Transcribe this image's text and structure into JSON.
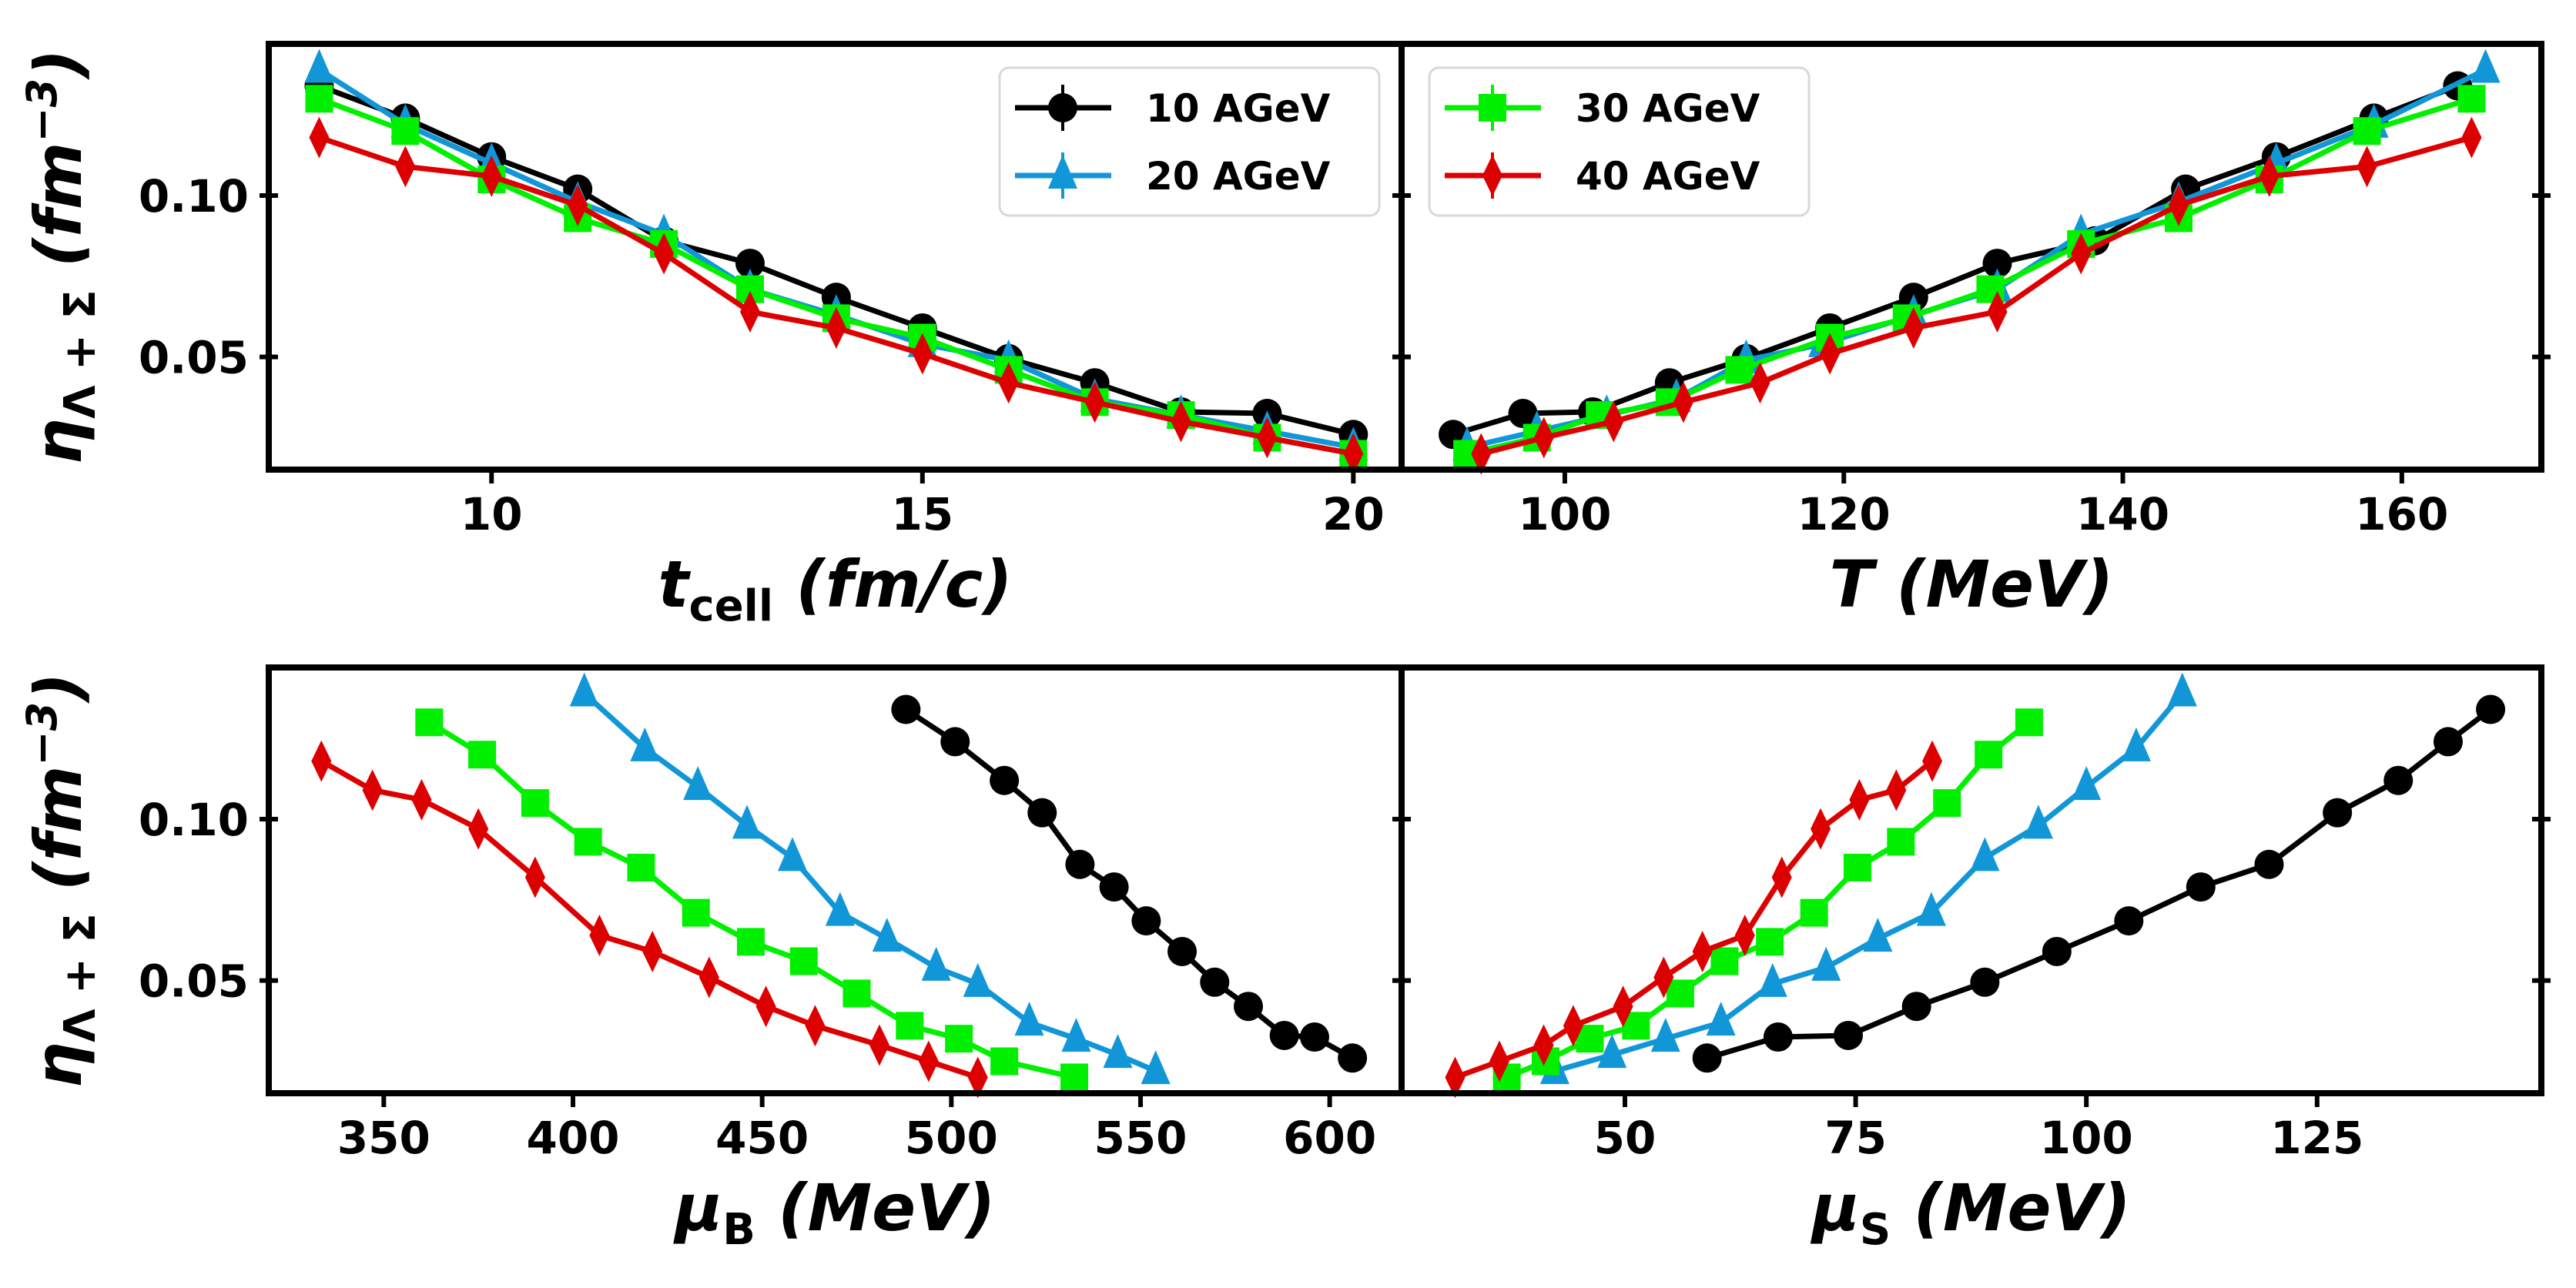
{
  "chart_data": [
    {
      "type": "line",
      "panel": "top-left",
      "xlabel": {
        "symbol": "t",
        "sub": "cell",
        "unit": "(fm/c)"
      },
      "ylabel": {
        "symbol": "η",
        "sub": "Λ + Σ",
        "unit_open": "(fm",
        "sup": "−3",
        "unit_close": ")"
      },
      "xlim": [
        7.415,
        20.56
      ],
      "ylim": [
        0.0151,
        0.147
      ],
      "xticks": [
        10,
        15,
        20
      ],
      "xtick_labels": [
        "10",
        "15",
        "20"
      ],
      "yticks": [
        0.05,
        0.1
      ],
      "ytick_labels": [
        "0.05",
        "0.10"
      ],
      "legend": {
        "placement": "top-right",
        "entries": [
          0,
          1
        ]
      },
      "series": [
        {
          "name": "10 AGeV",
          "color": "#000000",
          "marker": "circle",
          "x": [
            8,
            9,
            10,
            11,
            12,
            13,
            14,
            15,
            16,
            17,
            18,
            19,
            20
          ],
          "y": [
            0.134,
            0.124,
            0.112,
            0.102,
            0.086,
            0.079,
            0.0685,
            0.059,
            0.0495,
            0.042,
            0.033,
            0.0325,
            0.026
          ]
        },
        {
          "name": "20 AGeV",
          "color": "#1196d8",
          "marker": "triangle",
          "x": [
            8,
            9,
            10,
            11,
            12,
            13,
            14,
            15,
            16,
            17,
            18,
            19,
            20
          ],
          "y": [
            0.139,
            0.122,
            0.11,
            0.098,
            0.088,
            0.071,
            0.063,
            0.054,
            0.049,
            0.037,
            0.032,
            0.027,
            0.022
          ]
        },
        {
          "name": "30 AGeV",
          "color": "#00f000",
          "marker": "square",
          "x": [
            8,
            9,
            10,
            11,
            12,
            13,
            14,
            15,
            16,
            17,
            18,
            19,
            20
          ],
          "y": [
            0.13,
            0.12,
            0.105,
            0.093,
            0.085,
            0.071,
            0.062,
            0.056,
            0.046,
            0.036,
            0.032,
            0.025,
            0.02
          ]
        },
        {
          "name": "40 AGeV",
          "color": "#dd0000",
          "marker": "diamond",
          "x": [
            8,
            9,
            10,
            11,
            12,
            13,
            14,
            15,
            16,
            17,
            18,
            19,
            20
          ],
          "y": [
            0.118,
            0.109,
            0.106,
            0.097,
            0.082,
            0.064,
            0.059,
            0.051,
            0.042,
            0.036,
            0.03,
            0.025,
            0.02
          ]
        }
      ]
    },
    {
      "type": "line",
      "panel": "top-right",
      "xlabel": {
        "symbol": "T",
        "sub": "",
        "unit": "(MeV)"
      },
      "ylabel": null,
      "xlim": [
        88.3,
        170
      ],
      "ylim": [
        0.0151,
        0.147
      ],
      "xticks": [
        100,
        120,
        140,
        160
      ],
      "xtick_labels": [
        "100",
        "120",
        "140",
        "160"
      ],
      "yticks": [
        0.05,
        0.1
      ],
      "ytick_labels": [],
      "legend": {
        "placement": "top-left",
        "entries": [
          2,
          3
        ]
      },
      "series": [
        {
          "name": "10 AGeV",
          "color": "#000000",
          "marker": "circle",
          "x": [
            164,
            158,
            151,
            144.5,
            138,
            131,
            125,
            119,
            113,
            107.5,
            102,
            97,
            92
          ],
          "y": [
            0.134,
            0.124,
            0.112,
            0.102,
            0.086,
            0.079,
            0.0685,
            0.059,
            0.0495,
            0.042,
            0.033,
            0.0325,
            0.026
          ]
        },
        {
          "name": "20 AGeV",
          "color": "#1196d8",
          "marker": "triangle",
          "x": [
            166,
            158,
            151,
            144,
            137,
            131,
            125,
            118.5,
            113,
            108,
            103,
            98,
            93
          ],
          "y": [
            0.139,
            0.122,
            0.11,
            0.098,
            0.088,
            0.071,
            0.063,
            0.054,
            0.049,
            0.037,
            0.032,
            0.027,
            0.022
          ]
        },
        {
          "name": "30 AGeV",
          "color": "#00f000",
          "marker": "square",
          "x": [
            165,
            157.5,
            150.5,
            144,
            137,
            130.5,
            124.5,
            119,
            112.5,
            107.5,
            102.5,
            98,
            93
          ],
          "y": [
            0.13,
            0.12,
            0.105,
            0.093,
            0.085,
            0.071,
            0.062,
            0.056,
            0.046,
            0.036,
            0.032,
            0.025,
            0.02
          ]
        },
        {
          "name": "40 AGeV",
          "color": "#dd0000",
          "marker": "diamond",
          "x": [
            165,
            157.5,
            150.5,
            144,
            137,
            131,
            125,
            119,
            114,
            108.5,
            103.5,
            98.5,
            94
          ],
          "y": [
            0.118,
            0.109,
            0.106,
            0.097,
            0.082,
            0.064,
            0.059,
            0.051,
            0.042,
            0.036,
            0.03,
            0.025,
            0.02
          ]
        }
      ]
    },
    {
      "type": "line",
      "panel": "bottom-left",
      "xlabel": {
        "symbol": "μ",
        "sub": "B",
        "unit": "(MeV)"
      },
      "ylabel": {
        "symbol": "η",
        "sub": "Λ + Σ",
        "unit_open": "(fm",
        "sup": "−3",
        "unit_close": ")"
      },
      "xlim": [
        319.6,
        619
      ],
      "ylim": [
        0.0151,
        0.147
      ],
      "xticks": [
        350,
        400,
        450,
        500,
        550,
        600
      ],
      "xtick_labels": [
        "350",
        "400",
        "450",
        "500",
        "550",
        "600"
      ],
      "yticks": [
        0.05,
        0.1
      ],
      "ytick_labels": [
        "0.05",
        "0.10"
      ],
      "legend": null,
      "series": [
        {
          "name": "10 AGeV",
          "color": "#000000",
          "marker": "circle",
          "x": [
            488,
            501,
            514,
            524,
            534,
            543,
            551.5,
            561,
            569.6,
            578.5,
            588,
            596,
            606
          ],
          "y": [
            0.134,
            0.124,
            0.112,
            0.102,
            0.086,
            0.079,
            0.0685,
            0.059,
            0.0495,
            0.042,
            0.033,
            0.0325,
            0.026
          ]
        },
        {
          "name": "20 AGeV",
          "color": "#1196d8",
          "marker": "triangle",
          "x": [
            403,
            419,
            433,
            446,
            458,
            470.6,
            483,
            496,
            507,
            520.6,
            533,
            544,
            554
          ],
          "y": [
            0.139,
            0.122,
            0.11,
            0.098,
            0.088,
            0.071,
            0.063,
            0.054,
            0.049,
            0.037,
            0.032,
            0.027,
            0.022
          ]
        },
        {
          "name": "30 AGeV",
          "color": "#00f000",
          "marker": "square",
          "x": [
            362,
            376,
            390,
            404,
            418,
            432.5,
            447,
            461,
            475,
            489,
            502,
            514,
            532.5
          ],
          "y": [
            0.13,
            0.12,
            0.105,
            0.093,
            0.085,
            0.071,
            0.062,
            0.056,
            0.046,
            0.036,
            0.032,
            0.025,
            0.02
          ]
        },
        {
          "name": "40 AGeV",
          "color": "#dd0000",
          "marker": "diamond",
          "x": [
            333.5,
            347,
            360,
            375,
            390,
            407,
            421,
            436,
            451,
            464,
            481,
            494,
            507
          ],
          "y": [
            0.118,
            0.109,
            0.106,
            0.097,
            0.082,
            0.064,
            0.059,
            0.051,
            0.042,
            0.036,
            0.03,
            0.025,
            0.02
          ]
        }
      ]
    },
    {
      "type": "line",
      "panel": "bottom-right",
      "xlabel": {
        "symbol": "μ",
        "sub": "S",
        "unit": "(MeV)"
      },
      "ylabel": null,
      "xlim": [
        25.8,
        149.3
      ],
      "ylim": [
        0.0151,
        0.147
      ],
      "xticks": [
        50,
        75,
        100,
        125
      ],
      "xtick_labels": [
        "50",
        "75",
        "100",
        "125"
      ],
      "yticks": [
        0.05,
        0.1
      ],
      "ytick_labels": [],
      "legend": null,
      "series": [
        {
          "name": "10 AGeV",
          "color": "#000000",
          "marker": "circle",
          "x": [
            143.8,
            139.2,
            133.8,
            127.2,
            119.8,
            112.4,
            104.6,
            96.8,
            89,
            81.6,
            74.2,
            66.6,
            58.9
          ],
          "y": [
            0.134,
            0.124,
            0.112,
            0.102,
            0.086,
            0.079,
            0.0685,
            0.059,
            0.0495,
            0.042,
            0.033,
            0.0325,
            0.026
          ]
        },
        {
          "name": "20 AGeV",
          "color": "#1196d8",
          "marker": "triangle",
          "x": [
            110.4,
            105.4,
            100,
            94.8,
            89,
            83.2,
            77.4,
            71.8,
            66,
            60.4,
            54.4,
            48.6,
            42.4
          ],
          "y": [
            0.139,
            0.122,
            0.11,
            0.098,
            0.088,
            0.071,
            0.063,
            0.054,
            0.049,
            0.037,
            0.032,
            0.027,
            0.022
          ]
        },
        {
          "name": "30 AGeV",
          "color": "#00f000",
          "marker": "square",
          "x": [
            93.8,
            89.4,
            84.9,
            79.9,
            75.2,
            70.5,
            65.7,
            60.8,
            56,
            51.2,
            46.2,
            41.4,
            37.2
          ],
          "y": [
            0.13,
            0.12,
            0.105,
            0.093,
            0.085,
            0.071,
            0.062,
            0.056,
            0.046,
            0.036,
            0.032,
            0.025,
            0.02
          ]
        },
        {
          "name": "40 AGeV",
          "color": "#dd0000",
          "marker": "diamond",
          "x": [
            83.3,
            79.4,
            75.4,
            71.2,
            67,
            63,
            58.4,
            54.2,
            49.8,
            44.4,
            41.2,
            36.4,
            31.6
          ],
          "y": [
            0.118,
            0.109,
            0.106,
            0.097,
            0.082,
            0.064,
            0.059,
            0.051,
            0.042,
            0.036,
            0.03,
            0.025,
            0.02
          ]
        }
      ]
    }
  ]
}
